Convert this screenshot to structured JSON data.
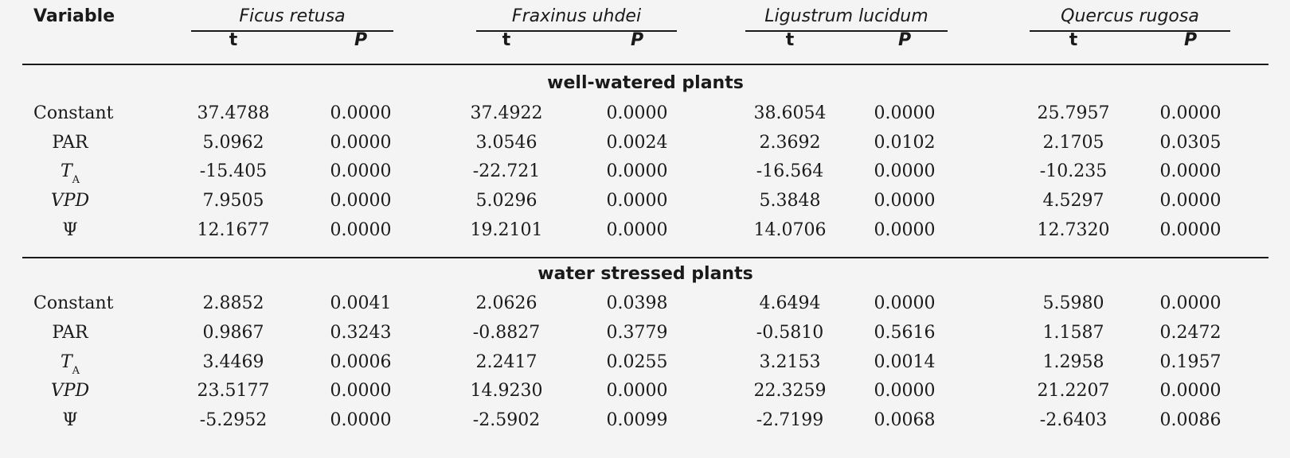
{
  "header": {
    "variable": "Variable",
    "t": "t",
    "p": "P",
    "species": [
      "Ficus retusa",
      "Fraxinus uhdei",
      "Ligustrum lucidum",
      "Quercus rugosa"
    ]
  },
  "sections": [
    {
      "title": "well-watered plants",
      "rows": [
        {
          "var": "Constant",
          "vals": [
            "37.4788",
            "0.0000",
            "37.4922",
            "0.0000",
            "38.6054",
            "0.0000",
            "25.7957",
            "0.0000"
          ]
        },
        {
          "var": "PAR",
          "vals": [
            "5.0962",
            "0.0000",
            "3.0546",
            "0.0024",
            "2.3692",
            "0.0102",
            "2.1705",
            "0.0305"
          ]
        },
        {
          "var": "T",
          "sub": "A",
          "vals": [
            "-15.405",
            "0.0000",
            "-22.721",
            "0.0000",
            "-16.564",
            "0.0000",
            "-10.235",
            "0.0000"
          ]
        },
        {
          "var": "VPD",
          "vals": [
            "7.9505",
            "0.0000",
            "5.0296",
            "0.0000",
            "5.3848",
            "0.0000",
            "4.5297",
            "0.0000"
          ]
        },
        {
          "var": "Ψ",
          "vals": [
            "12.1677",
            "0.0000",
            "19.2101",
            "0.0000",
            "14.0706",
            "0.0000",
            "12.7320",
            "0.0000"
          ]
        }
      ]
    },
    {
      "title": "water stressed plants",
      "rows": [
        {
          "var": "Constant",
          "vals": [
            "2.8852",
            "0.0041",
            "2.0626",
            "0.0398",
            "4.6494",
            "0.0000",
            "5.5980",
            "0.0000"
          ]
        },
        {
          "var": "PAR",
          "vals": [
            "0.9867",
            "0.3243",
            "-0.8827",
            "0.3779",
            "-0.5810",
            "0.5616",
            "1.1587",
            "0.2472"
          ]
        },
        {
          "var": "T",
          "sub": "A",
          "vals": [
            "3.4469",
            "0.0006",
            "2.2417",
            "0.0255",
            "3.2153",
            "0.0014",
            "1.2958",
            "0.1957"
          ]
        },
        {
          "var": "VPD",
          "vals": [
            "23.5177",
            "0.0000",
            "14.9230",
            "0.0000",
            "22.3259",
            "0.0000",
            "21.2207",
            "0.0000"
          ]
        },
        {
          "var": "Ψ",
          "vals": [
            "-5.2952",
            "0.0000",
            "-2.5902",
            "0.0099",
            "-2.7199",
            "0.0068",
            "-2.6403",
            "0.0086"
          ]
        }
      ]
    }
  ]
}
